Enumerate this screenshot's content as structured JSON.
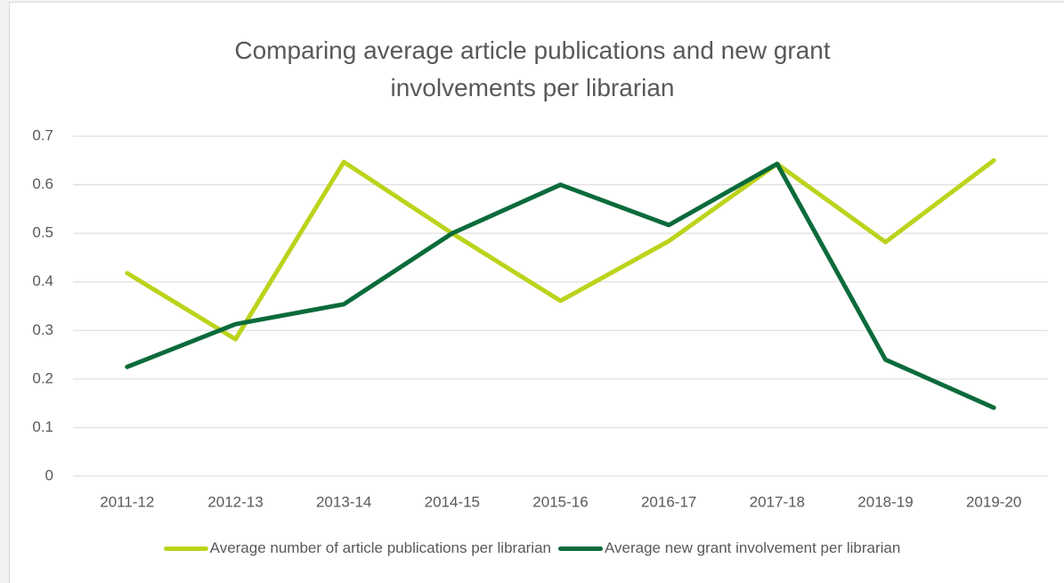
{
  "chart_data": {
    "type": "line",
    "title": "Comparing average article publications and new grant involvements per librarian",
    "categories": [
      "2011-12",
      "2012-13",
      "2013-14",
      "2014-15",
      "2015-16",
      "2016-17",
      "2017-18",
      "2018-19",
      "2019-20"
    ],
    "series": [
      {
        "name": "Average number of article publications per librarian",
        "color": "#bcd31c",
        "values": [
          0.418,
          0.282,
          0.647,
          0.5,
          0.361,
          0.484,
          0.643,
          0.482,
          0.65
        ]
      },
      {
        "name": "Average new grant involvement per librarian",
        "color": "#0b6b3a",
        "values": [
          0.225,
          0.313,
          0.354,
          0.5,
          0.6,
          0.517,
          0.643,
          0.24,
          0.141
        ]
      }
    ],
    "ylim": [
      0,
      0.7
    ],
    "yticks": [
      0,
      0.1,
      0.2,
      0.3,
      0.4,
      0.5,
      0.6,
      0.7
    ],
    "grid": true,
    "legend": "bottom"
  }
}
